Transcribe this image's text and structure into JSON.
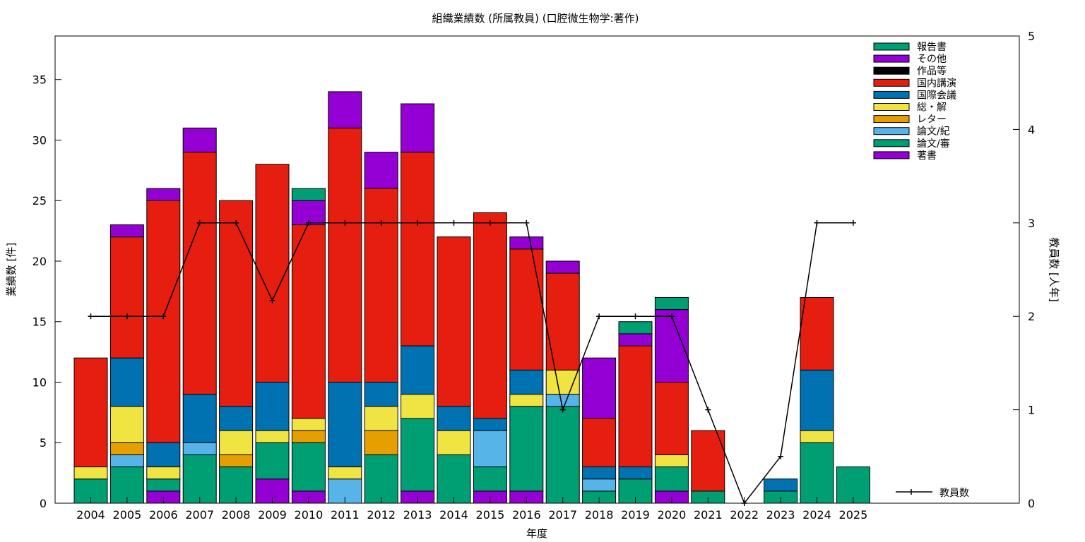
{
  "chart_data": {
    "type": "bar",
    "stacked": true,
    "title": "組織業績数 (所属教員) (口腔微生物学:著作)",
    "xlabel": "年度",
    "ylabel": "業績数 [件]",
    "y2label": "教員数 [人年]",
    "ylim": [
      0,
      38.6
    ],
    "y2lim": [
      0,
      5
    ],
    "yticks": [
      0,
      5,
      10,
      15,
      20,
      25,
      30,
      35
    ],
    "y2ticks": [
      0,
      1,
      2,
      3,
      4,
      5
    ],
    "grid": false,
    "legend_position": "top-right",
    "categories": [
      "2004",
      "2005",
      "2006",
      "2007",
      "2008",
      "2009",
      "2010",
      "2011",
      "2012",
      "2013",
      "2014",
      "2015",
      "2016",
      "2017",
      "2018",
      "2019",
      "2020",
      "2021",
      "2022",
      "2023",
      "2024",
      "2025"
    ],
    "series": [
      {
        "name": "著書",
        "color": "#9400d3",
        "values": [
          0,
          0,
          1,
          0,
          0,
          2,
          1,
          0,
          0,
          1,
          0,
          1,
          1,
          0,
          0,
          0,
          1,
          0,
          0,
          0,
          0,
          0
        ]
      },
      {
        "name": "論文/審",
        "color": "#009e73",
        "values": [
          2,
          3,
          1,
          4,
          3,
          3,
          4,
          0,
          4,
          6,
          4,
          2,
          7,
          8,
          1,
          2,
          2,
          1,
          0,
          1,
          5,
          3
        ]
      },
      {
        "name": "論文/紀",
        "color": "#56b4e9",
        "values": [
          0,
          1,
          0,
          1,
          0,
          0,
          0,
          2,
          0,
          0,
          0,
          3,
          0,
          1,
          1,
          0,
          0,
          0,
          0,
          0,
          0,
          0
        ]
      },
      {
        "name": "レター",
        "color": "#e69f00",
        "values": [
          0,
          1,
          0,
          0,
          1,
          0,
          1,
          0,
          2,
          0,
          0,
          0,
          0,
          0,
          0,
          0,
          0,
          0,
          0,
          0,
          0,
          0
        ]
      },
      {
        "name": "総・解",
        "color": "#f0e442",
        "values": [
          1,
          3,
          1,
          0,
          2,
          1,
          1,
          1,
          2,
          2,
          2,
          0,
          1,
          2,
          0,
          0,
          1,
          0,
          0,
          0,
          1,
          0
        ]
      },
      {
        "name": "国際会議",
        "color": "#0072b2",
        "values": [
          0,
          4,
          2,
          4,
          2,
          4,
          0,
          7,
          2,
          4,
          2,
          1,
          2,
          0,
          1,
          1,
          0,
          0,
          0,
          1,
          5,
          0
        ]
      },
      {
        "name": "国内講演",
        "color": "#e51e10",
        "values": [
          9,
          10,
          20,
          20,
          17,
          18,
          16,
          21,
          16,
          16,
          14,
          17,
          10,
          8,
          4,
          10,
          6,
          5,
          0,
          0,
          6,
          0
        ]
      },
      {
        "name": "作品等",
        "color": "#000000",
        "values": [
          0,
          0,
          0,
          0,
          0,
          0,
          0,
          0,
          0,
          0,
          0,
          0,
          0,
          0,
          0,
          0,
          0,
          0,
          0,
          0,
          0,
          0
        ]
      },
      {
        "name": "その他",
        "color": "#9400d3",
        "values": [
          0,
          1,
          1,
          2,
          0,
          0,
          2,
          3,
          3,
          4,
          0,
          0,
          1,
          1,
          5,
          1,
          6,
          0,
          0,
          0,
          0,
          0
        ]
      },
      {
        "name": "報告書",
        "color": "#009e73",
        "values": [
          0,
          0,
          0,
          0,
          0,
          0,
          1,
          0,
          0,
          0,
          0,
          0,
          0,
          0,
          0,
          1,
          1,
          0,
          0,
          0,
          0,
          0
        ]
      }
    ],
    "line_series": {
      "name": "教員数",
      "color": "#000000",
      "values": [
        2,
        2,
        2,
        3,
        3,
        2.17,
        3,
        3,
        3,
        3,
        3,
        3,
        3,
        1,
        2,
        2,
        2,
        1,
        0,
        0.5,
        3,
        3
      ]
    }
  }
}
